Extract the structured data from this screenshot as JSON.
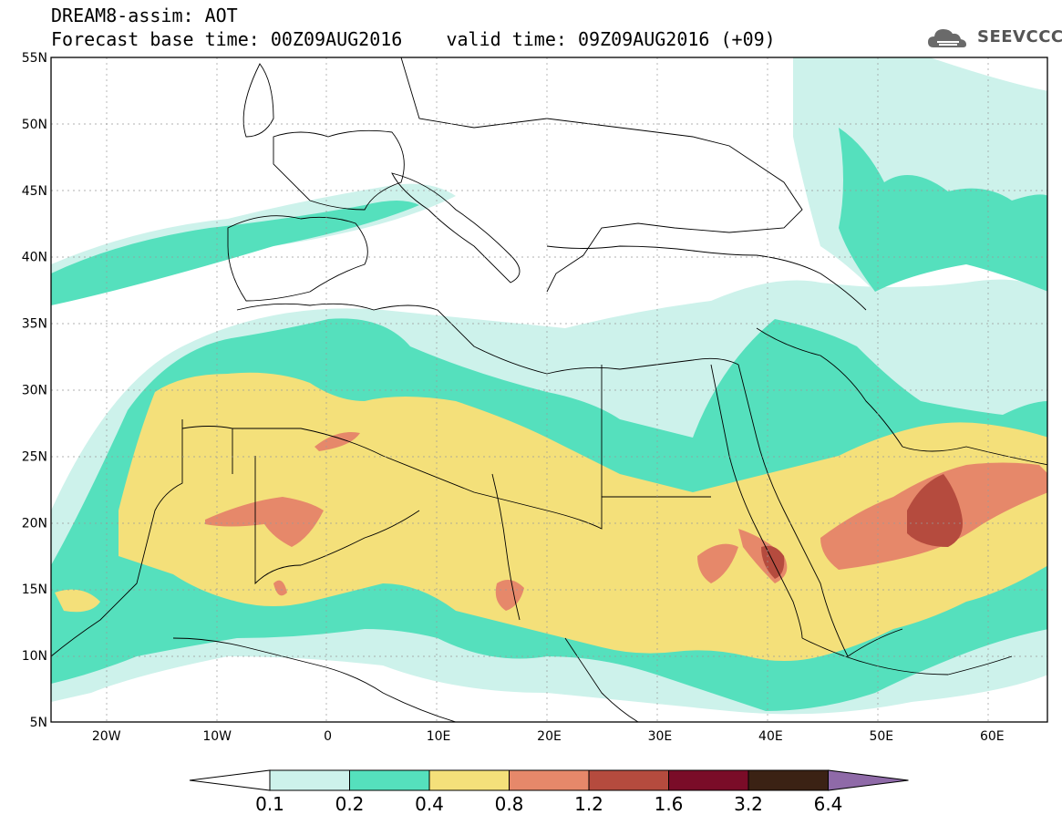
{
  "header": {
    "title_line1": "DREAM8-assim: AOT",
    "title_line2": "Forecast base time: 00Z09AUG2016    valid time: 09Z09AUG2016 (+09)",
    "logo_text": "SEEVCCC"
  },
  "map": {
    "lon_range": [
      -25,
      65
    ],
    "lat_range": [
      5,
      55
    ],
    "lat_labels": [
      {
        "lat": 55,
        "text": "55N"
      },
      {
        "lat": 50,
        "text": "50N"
      },
      {
        "lat": 45,
        "text": "45N"
      },
      {
        "lat": 40,
        "text": "40N"
      },
      {
        "lat": 35,
        "text": "35N"
      },
      {
        "lat": 30,
        "text": "30N"
      },
      {
        "lat": 25,
        "text": "25N"
      },
      {
        "lat": 20,
        "text": "20N"
      },
      {
        "lat": 15,
        "text": "15N"
      },
      {
        "lat": 10,
        "text": "10N"
      },
      {
        "lat": 5,
        "text": "5N"
      }
    ],
    "lon_labels": [
      {
        "lon": -20,
        "text": "20W"
      },
      {
        "lon": -10,
        "text": "10W"
      },
      {
        "lon": 0,
        "text": "0"
      },
      {
        "lon": 10,
        "text": "10E"
      },
      {
        "lon": 20,
        "text": "20E"
      },
      {
        "lon": 30,
        "text": "30E"
      },
      {
        "lon": 40,
        "text": "40E"
      },
      {
        "lon": 50,
        "text": "50E"
      },
      {
        "lon": 60,
        "text": "60E"
      }
    ]
  },
  "colorbar": {
    "bins": [
      {
        "color": "#cdf2eb"
      },
      {
        "color": "#55e0bd"
      },
      {
        "color": "#f4e07a"
      },
      {
        "color": "#e6886a"
      },
      {
        "color": "#b54b3e"
      },
      {
        "color": "#7a0c28"
      },
      {
        "color": "#3b2214"
      }
    ],
    "over_color": "#8f6aa8",
    "labels": [
      "0.1",
      "0.2",
      "0.4",
      "0.8",
      "1.2",
      "1.6",
      "3.2",
      "6.4"
    ]
  },
  "legend_colors": {
    "aot_01_02": "#cdf2eb",
    "aot_02_04": "#55e0bd",
    "aot_04_08": "#f4e07a",
    "aot_08_12": "#e6886a",
    "aot_12_16": "#b54b3e",
    "aot_16_32": "#7a0c28"
  }
}
